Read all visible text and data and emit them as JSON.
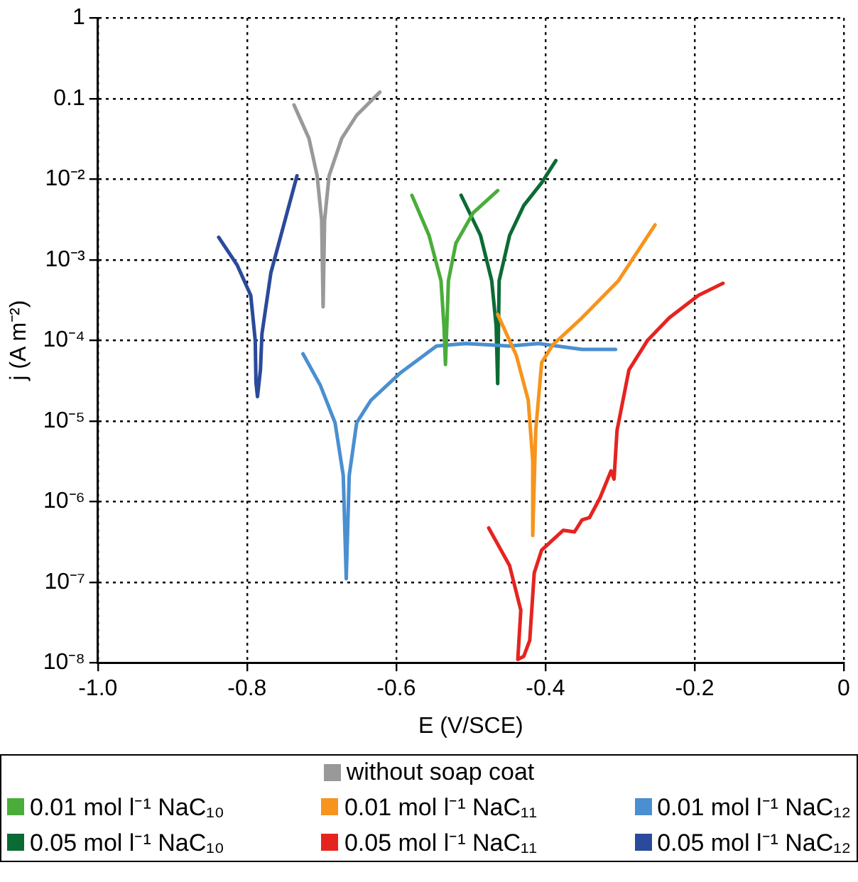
{
  "chart_data": {
    "type": "line",
    "xlabel": "E (V/SCE)",
    "ylabel": "j (A m⁻²)",
    "log": "y",
    "grid": true,
    "legend": "bottom",
    "marker": "none",
    "line_style": "solid",
    "xlim": [
      -1.0,
      0
    ],
    "xticks": [
      {
        "value": -1.0,
        "label": "-1.0"
      },
      {
        "value": -0.8,
        "label": "-0.8"
      },
      {
        "value": -0.6,
        "label": "-0.6"
      },
      {
        "value": -0.4,
        "label": "-0.4"
      },
      {
        "value": -0.2,
        "label": "-0.2"
      },
      0
    ],
    "ylim": [
      1e-08,
      1
    ],
    "yticks": [
      {
        "value": 1e-08,
        "label": "10⁻⁸"
      },
      {
        "value": 1e-07,
        "label": "10⁻⁷"
      },
      {
        "value": 1e-06,
        "label": "10⁻⁶"
      },
      {
        "value": 1e-05,
        "label": "10⁻⁵"
      },
      {
        "value": 0.0001,
        "label": "10⁻⁴"
      },
      {
        "value": 0.001,
        "label": "10⁻³"
      },
      {
        "value": 0.01,
        "label": "10⁻²"
      },
      0.1,
      1
    ],
    "series": [
      {
        "name": "without soap coat",
        "color": "#999999",
        "x": [
          -0.737,
          -0.717,
          -0.706,
          -0.7,
          -0.698,
          -0.696,
          -0.69,
          -0.673,
          -0.653,
          -0.622
        ],
        "values": [
          0.083,
          0.032,
          0.011,
          0.0031,
          0.00026,
          0.0031,
          0.011,
          0.032,
          0.062,
          0.12
        ]
      },
      {
        "name": "0.01 mol l⁻¹ NaC₁₀",
        "color": "#4aad3a",
        "x": [
          -0.579,
          -0.556,
          -0.54,
          -0.536,
          -0.534,
          -0.53,
          -0.52,
          -0.497,
          -0.464
        ],
        "values": [
          0.0063,
          0.002,
          0.00055,
          0.00015,
          5e-05,
          0.00055,
          0.0016,
          0.0038,
          0.0072
        ]
      },
      {
        "name": "0.01 mol l⁻¹ NaC₁₁",
        "color": "#f7941d",
        "x": [
          -0.464,
          -0.439,
          -0.423,
          -0.417,
          -0.417,
          -0.413,
          -0.405,
          -0.39,
          -0.351,
          -0.302,
          -0.253
        ],
        "values": [
          0.00021,
          6.5e-05,
          1.8e-05,
          3.2e-06,
          3.8e-07,
          7.6e-06,
          5.3e-05,
          8.8e-05,
          0.00019,
          0.00055,
          0.0027
        ]
      },
      {
        "name": "0.01 mol l⁻¹ NaC₁₂",
        "color": "#4a8fd0",
        "x": [
          -0.725,
          -0.702,
          -0.682,
          -0.671,
          -0.667,
          -0.663,
          -0.653,
          -0.634,
          -0.595,
          -0.546,
          -0.507,
          -0.448,
          -0.409,
          -0.351,
          -0.306
        ],
        "values": [
          6.8e-05,
          2.8e-05,
          9.5e-06,
          2.1e-06,
          1.1e-07,
          2.1e-06,
          9.5e-06,
          1.8e-05,
          3.9e-05,
          8.5e-05,
          9.1e-05,
          8.5e-05,
          9.1e-05,
          7.7e-05,
          7.7e-05
        ]
      },
      {
        "name": "0.05 mol l⁻¹ NaC₁₀",
        "color": "#0b6b34",
        "x": [
          -0.513,
          -0.487,
          -0.472,
          -0.466,
          -0.464,
          -0.462,
          -0.448,
          -0.429,
          -0.405,
          -0.386
        ],
        "values": [
          0.0063,
          0.002,
          0.00055,
          0.00015,
          2.9e-05,
          0.00055,
          0.002,
          0.0047,
          0.009,
          0.017
        ]
      },
      {
        "name": "0.05 mol l⁻¹ NaC₁₁",
        "color": "#e52420",
        "x": [
          -0.476,
          -0.448,
          -0.433,
          -0.437,
          -0.429,
          -0.421,
          -0.415,
          -0.405,
          -0.376,
          -0.361,
          -0.351,
          -0.341,
          -0.327,
          -0.312,
          -0.308,
          -0.304,
          -0.288,
          -0.263,
          -0.234,
          -0.195,
          -0.162
        ],
        "values": [
          4.7e-07,
          1.6e-07,
          4.5e-08,
          1.1e-08,
          1.2e-08,
          1.9e-08,
          1.3e-07,
          2.5e-07,
          4.4e-07,
          4.2e-07,
          5.9e-07,
          6.3e-07,
          1.1e-06,
          2.4e-06,
          1.9e-06,
          7.6e-06,
          4.3e-05,
          0.0001,
          0.00019,
          0.00036,
          0.00051
        ]
      },
      {
        "name": "0.05 mol l⁻¹ NaC₁₂",
        "color": "#2a4a9b",
        "x": [
          -0.838,
          -0.813,
          -0.795,
          -0.789,
          -0.788,
          -0.786,
          -0.782,
          -0.78,
          -0.768,
          -0.749,
          -0.733
        ],
        "values": [
          0.0019,
          0.00085,
          0.00036,
          0.0001,
          3e-05,
          2e-05,
          4.3e-05,
          0.00012,
          0.00069,
          0.0031,
          0.011
        ]
      }
    ]
  }
}
